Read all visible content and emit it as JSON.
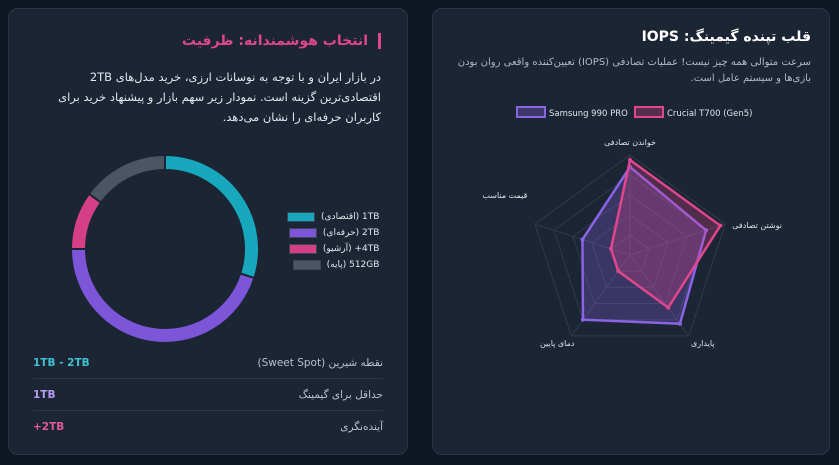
{
  "capacity_card": {
    "title": "انتخاب هوشمندانه: ظرفیت",
    "description": "در بازار ایران و با توجه به نوسانات ارزی، خرید مدل‌های 2TB اقتصادی‌ترین گزینه است. نمودار زیر سهم بازار و پیشنهاد خرید برای کاربران حرفه‌ای را نشان می‌دهد.",
    "stats": [
      {
        "label": "نقطه شیرین (Sweet Spot)",
        "value": "1TB - 2TB",
        "color": "#3fc2d3"
      },
      {
        "label": "حداقل برای گیمینگ",
        "value": "1TB",
        "color": "#b79bf0"
      },
      {
        "label": "آینده‌نگری",
        "value": "+2TB",
        "color": "#e35a9b"
      }
    ]
  },
  "iops_card": {
    "title": "قلب تپنده گیمینگ: IOPS",
    "description": "سرعت متوالی همه چیز نیست! عملیات تصادفی (IOPS) تعیین‌کننده واقعی روان بودن بازی‌ها و سیستم عامل است."
  },
  "chart_data": [
    {
      "type": "pie",
      "categories": [
        "1TB (اقتصادی)",
        "2TB (حرفه‌ای)",
        "4TB+ (آرشیو)",
        "512GB (پایه)"
      ],
      "values": [
        30,
        45,
        10,
        15
      ],
      "colors": [
        "#17a8be",
        "#7d55d8",
        "#d43f87",
        "#4b5564"
      ],
      "legend": "right"
    },
    {
      "type": "radar",
      "axes": [
        "خواندن تصادفی",
        "نوشتن تصادفی",
        "پایداری",
        "دمای پایین",
        "قیمت مناسب"
      ],
      "range": [
        0,
        100
      ],
      "series": [
        {
          "name": "Samsung 990 PRO",
          "values": [
            88,
            80,
            85,
            80,
            50
          ],
          "color": "#8a63e6"
        },
        {
          "name": "Crucial T700 (Gen5)",
          "values": [
            95,
            95,
            65,
            20,
            20
          ],
          "color": "#e0468c"
        }
      ],
      "legend": "top"
    }
  ]
}
